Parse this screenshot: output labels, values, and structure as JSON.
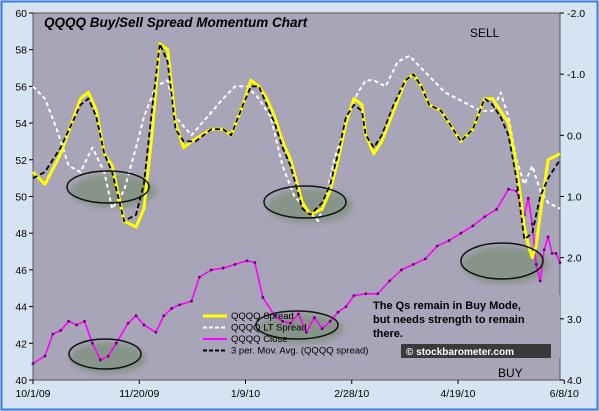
{
  "chart_data": {
    "type": "line",
    "title": "QQQQ Buy/Sell Spread Momentum Chart",
    "sell_label": "SELL",
    "buy_label": "BUY",
    "x_ticks": [
      "10/1/09",
      "11/20/09",
      "1/9/10",
      "2/28/10",
      "4/19/10",
      "6/8/10"
    ],
    "y_left_ticks": [
      "40",
      "42",
      "44",
      "46",
      "48",
      "50",
      "52",
      "54",
      "56",
      "58",
      "60"
    ],
    "y_right_ticks": [
      "4.0",
      "3.0",
      "2.0",
      "1.0",
      "0.0",
      "-1.0",
      "-2.0"
    ],
    "y_left_range": [
      40,
      60
    ],
    "y_right_range": [
      4.0,
      -2.0
    ],
    "y_right_inverted": true,
    "grid": false,
    "legend_position": "bottom-center",
    "annotation": "The Qs remain in Buy Mode, but needs strength to remain there.",
    "annotation_lines": [
      "The Qs remain in Buy Mode,",
      "but needs strength to remain",
      "there."
    ],
    "watermark": "© stockbarometer.com",
    "series": [
      {
        "name": "QQQQ Spread",
        "color": "#ffff00",
        "axis": "right",
        "style": "solid",
        "points": [
          [
            0,
            0.6
          ],
          [
            3,
            0.8
          ],
          [
            7,
            0.3
          ],
          [
            12,
            -0.6
          ],
          [
            14,
            -0.7
          ],
          [
            16,
            -0.4
          ],
          [
            18,
            0.3
          ],
          [
            20,
            0.5
          ],
          [
            23,
            1.4
          ],
          [
            26,
            1.5
          ],
          [
            28,
            1.2
          ],
          [
            30,
            0.0
          ],
          [
            32,
            -1.5
          ],
          [
            34,
            -1.4
          ],
          [
            36,
            -0.2
          ],
          [
            38,
            0.2
          ],
          [
            40,
            0.1
          ],
          [
            45,
            -0.1
          ],
          [
            48,
            -0.1
          ],
          [
            50,
            0.0
          ],
          [
            53,
            -0.5
          ],
          [
            55,
            -0.9
          ],
          [
            57,
            -0.8
          ],
          [
            59,
            -0.6
          ],
          [
            61,
            -0.3
          ],
          [
            63,
            0.1
          ],
          [
            65,
            0.4
          ],
          [
            68,
            1.1
          ],
          [
            70,
            1.3
          ],
          [
            73,
            1.2
          ],
          [
            75,
            0.9
          ],
          [
            77,
            0.4
          ],
          [
            79,
            -0.2
          ],
          [
            81,
            -0.6
          ],
          [
            83,
            -0.5
          ],
          [
            84,
            0.0
          ],
          [
            86,
            0.3
          ],
          [
            88,
            0.1
          ],
          [
            91,
            -0.4
          ],
          [
            94,
            -0.9
          ],
          [
            96,
            -1.0
          ],
          [
            98,
            -0.8
          ],
          [
            100,
            -0.5
          ],
          [
            103,
            -0.4
          ],
          [
            105,
            -0.2
          ],
          [
            108,
            0.1
          ],
          [
            111,
            -0.1
          ],
          [
            114,
            -0.6
          ],
          [
            116,
            -0.6
          ],
          [
            118,
            -0.4
          ],
          [
            120,
            -0.2
          ],
          [
            122,
            0.5
          ],
          [
            124,
            1.5
          ],
          [
            125,
            1.8
          ],
          [
            126,
            2.0
          ],
          [
            127,
            1.8
          ],
          [
            128,
            1.3
          ],
          [
            130,
            0.4
          ],
          [
            133,
            0.3
          ]
        ]
      },
      {
        "name": "QQQQ LT Spread",
        "color": "#ffffff",
        "axis": "right",
        "style": "dashed",
        "points": [
          [
            0,
            -0.8
          ],
          [
            3,
            -0.6
          ],
          [
            6,
            -0.1
          ],
          [
            9,
            0.5
          ],
          [
            12,
            0.6
          ],
          [
            15,
            0.2
          ],
          [
            18,
            0.6
          ],
          [
            20,
            1.2
          ],
          [
            23,
            0.9
          ],
          [
            26,
            0.2
          ],
          [
            28,
            -0.3
          ],
          [
            31,
            -0.8
          ],
          [
            34,
            -0.9
          ],
          [
            36,
            -0.3
          ],
          [
            40,
            0.0
          ],
          [
            44,
            -0.3
          ],
          [
            48,
            -0.6
          ],
          [
            51,
            -0.8
          ],
          [
            54,
            -0.8
          ],
          [
            57,
            -0.6
          ],
          [
            60,
            -0.3
          ],
          [
            63,
            0.5
          ],
          [
            66,
            1.0
          ],
          [
            69,
            1.2
          ],
          [
            72,
            1.4
          ],
          [
            74,
            1.0
          ],
          [
            76,
            0.4
          ],
          [
            78,
            0.0
          ],
          [
            80,
            -0.4
          ],
          [
            82,
            -0.7
          ],
          [
            84,
            -0.9
          ],
          [
            86,
            -0.9
          ],
          [
            89,
            -0.8
          ],
          [
            92,
            -1.2
          ],
          [
            95,
            -1.3
          ],
          [
            98,
            -1.1
          ],
          [
            101,
            -0.9
          ],
          [
            104,
            -0.7
          ],
          [
            107,
            -0.6
          ],
          [
            110,
            -0.5
          ],
          [
            113,
            -0.4
          ],
          [
            116,
            -0.4
          ],
          [
            118,
            -0.7
          ],
          [
            120,
            -0.3
          ],
          [
            122,
            0.4
          ],
          [
            124,
            0.8
          ],
          [
            126,
            0.5
          ],
          [
            128,
            0.9
          ],
          [
            130,
            1.1
          ],
          [
            133,
            1.2
          ]
        ]
      },
      {
        "name": "QQQQ Close",
        "color": "#ff00ff",
        "axis": "left",
        "style": "solid",
        "points": [
          [
            0,
            40.9
          ],
          [
            3,
            41.3
          ],
          [
            5,
            42.5
          ],
          [
            7,
            42.7
          ],
          [
            9,
            43.2
          ],
          [
            11,
            43.0
          ],
          [
            13,
            43.2
          ],
          [
            15,
            42.0
          ],
          [
            17,
            41.1
          ],
          [
            19,
            41.3
          ],
          [
            21,
            42.0
          ],
          [
            24,
            43.1
          ],
          [
            26,
            43.5
          ],
          [
            28,
            43.0
          ],
          [
            31,
            42.6
          ],
          [
            33,
            43.5
          ],
          [
            35,
            43.9
          ],
          [
            37,
            44.1
          ],
          [
            40,
            44.3
          ],
          [
            42,
            45.6
          ],
          [
            45,
            46.0
          ],
          [
            48,
            46.1
          ],
          [
            51,
            46.3
          ],
          [
            54,
            46.5
          ],
          [
            56,
            46.4
          ],
          [
            58,
            44.5
          ],
          [
            61,
            43.5
          ],
          [
            63,
            43.2
          ],
          [
            65,
            43.1
          ],
          [
            67,
            43.6
          ],
          [
            69,
            42.6
          ],
          [
            71,
            43.4
          ],
          [
            73,
            42.8
          ],
          [
            75,
            43.2
          ],
          [
            77,
            43.7
          ],
          [
            79,
            44.0
          ],
          [
            81,
            44.6
          ],
          [
            84,
            44.7
          ],
          [
            87,
            44.7
          ],
          [
            90,
            45.4
          ],
          [
            93,
            46.0
          ],
          [
            96,
            46.3
          ],
          [
            99,
            46.6
          ],
          [
            102,
            47.3
          ],
          [
            105,
            47.6
          ],
          [
            108,
            48.0
          ],
          [
            111,
            48.4
          ],
          [
            114,
            48.9
          ],
          [
            117,
            49.3
          ],
          [
            120,
            50.4
          ],
          [
            122,
            50.3
          ],
          [
            124,
            49.0
          ],
          [
            125,
            49.9
          ],
          [
            126,
            48.5
          ],
          [
            127,
            46.3
          ],
          [
            128,
            45.4
          ],
          [
            129,
            47.1
          ],
          [
            130,
            47.8
          ],
          [
            131,
            46.9
          ],
          [
            132,
            46.9
          ],
          [
            133,
            46.4
          ]
        ]
      },
      {
        "name": "3 per. Mov. Avg. (QQQQ spread)",
        "color": "#000000",
        "axis": "right",
        "style": "dashed",
        "points": [
          [
            0,
            0.7
          ],
          [
            3,
            0.6
          ],
          [
            7,
            0.2
          ],
          [
            12,
            -0.5
          ],
          [
            14,
            -0.6
          ],
          [
            16,
            -0.3
          ],
          [
            18,
            0.3
          ],
          [
            20,
            0.6
          ],
          [
            23,
            1.4
          ],
          [
            26,
            1.3
          ],
          [
            28,
            0.8
          ],
          [
            30,
            -0.4
          ],
          [
            32,
            -1.5
          ],
          [
            34,
            -1.2
          ],
          [
            36,
            -0.1
          ],
          [
            38,
            0.1
          ],
          [
            41,
            0.1
          ],
          [
            45,
            -0.1
          ],
          [
            48,
            -0.1
          ],
          [
            50,
            0.0
          ],
          [
            53,
            -0.5
          ],
          [
            55,
            -0.8
          ],
          [
            57,
            -0.8
          ],
          [
            59,
            -0.5
          ],
          [
            61,
            -0.2
          ],
          [
            63,
            0.2
          ],
          [
            65,
            0.5
          ],
          [
            68,
            1.2
          ],
          [
            70,
            1.3
          ],
          [
            73,
            1.1
          ],
          [
            75,
            0.8
          ],
          [
            77,
            0.3
          ],
          [
            79,
            -0.3
          ],
          [
            81,
            -0.5
          ],
          [
            83,
            -0.4
          ],
          [
            84,
            0.0
          ],
          [
            86,
            0.2
          ],
          [
            88,
            0.0
          ],
          [
            91,
            -0.5
          ],
          [
            94,
            -0.9
          ],
          [
            96,
            -1.0
          ],
          [
            98,
            -0.8
          ],
          [
            100,
            -0.5
          ],
          [
            103,
            -0.4
          ],
          [
            105,
            -0.2
          ],
          [
            108,
            0.1
          ],
          [
            111,
            -0.1
          ],
          [
            114,
            -0.6
          ],
          [
            116,
            -0.5
          ],
          [
            118,
            -0.3
          ],
          [
            120,
            0.0
          ],
          [
            122,
            0.7
          ],
          [
            124,
            1.7
          ],
          [
            126,
            1.6
          ],
          [
            127,
            1.3
          ],
          [
            128,
            1.0
          ],
          [
            130,
            0.7
          ],
          [
            133,
            0.4
          ]
        ]
      }
    ]
  }
}
